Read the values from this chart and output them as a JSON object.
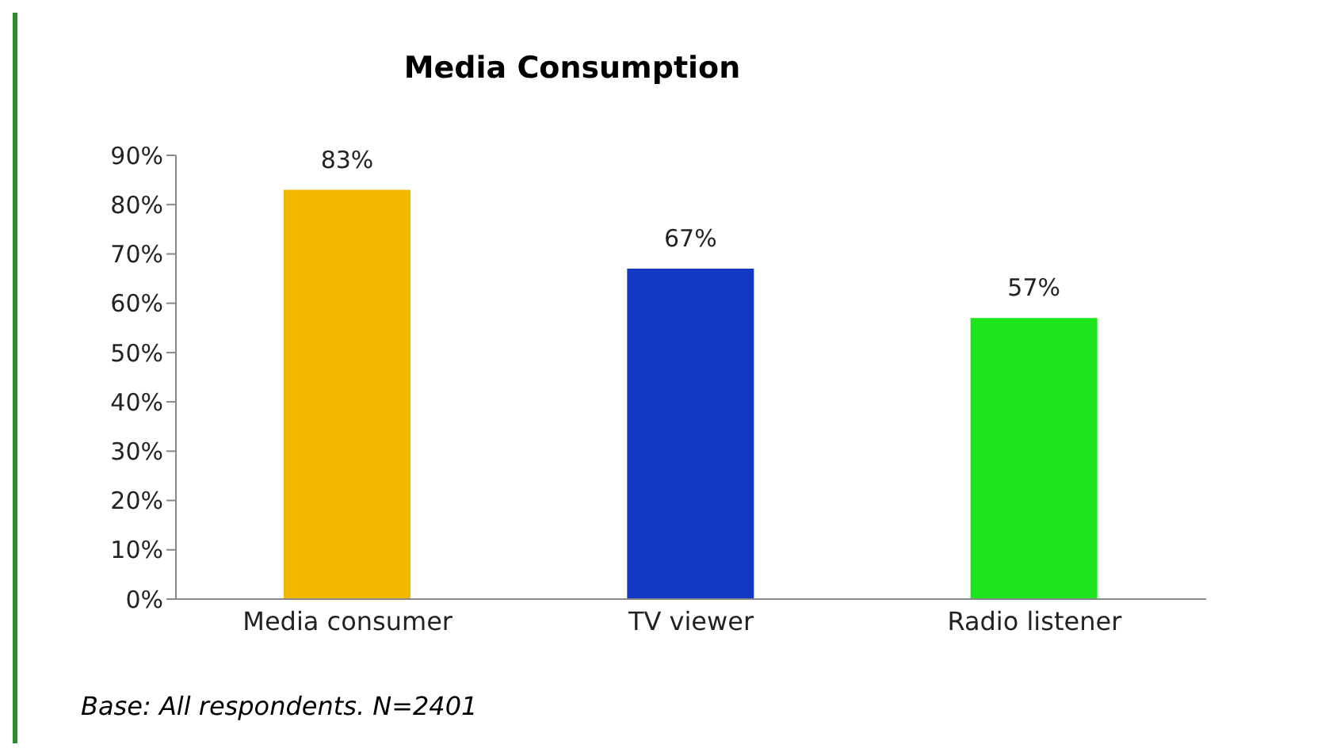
{
  "chart_data": {
    "type": "bar",
    "title": "Media Consumption",
    "categories": [
      "Media consumer",
      "TV viewer",
      "Radio listener"
    ],
    "values": [
      83,
      67,
      57
    ],
    "colors": [
      "#f2b700",
      "#1238c4",
      "#1ee61e"
    ],
    "value_labels": [
      "83%",
      "67%",
      "57%"
    ],
    "ylim": [
      0,
      90
    ],
    "yticks": [
      {
        "value": 0,
        "label": "0%"
      },
      {
        "value": 10,
        "label": "10%"
      },
      {
        "value": 20,
        "label": "20%"
      },
      {
        "value": 30,
        "label": "30%"
      },
      {
        "value": 40,
        "label": "40%"
      },
      {
        "value": 50,
        "label": "50%"
      },
      {
        "value": 60,
        "label": "60%"
      },
      {
        "value": 70,
        "label": "70%"
      },
      {
        "value": 80,
        "label": "80%"
      },
      {
        "value": 90,
        "label": "90%"
      }
    ],
    "annotations": [
      "Base: All respondents. N=2401"
    ]
  }
}
